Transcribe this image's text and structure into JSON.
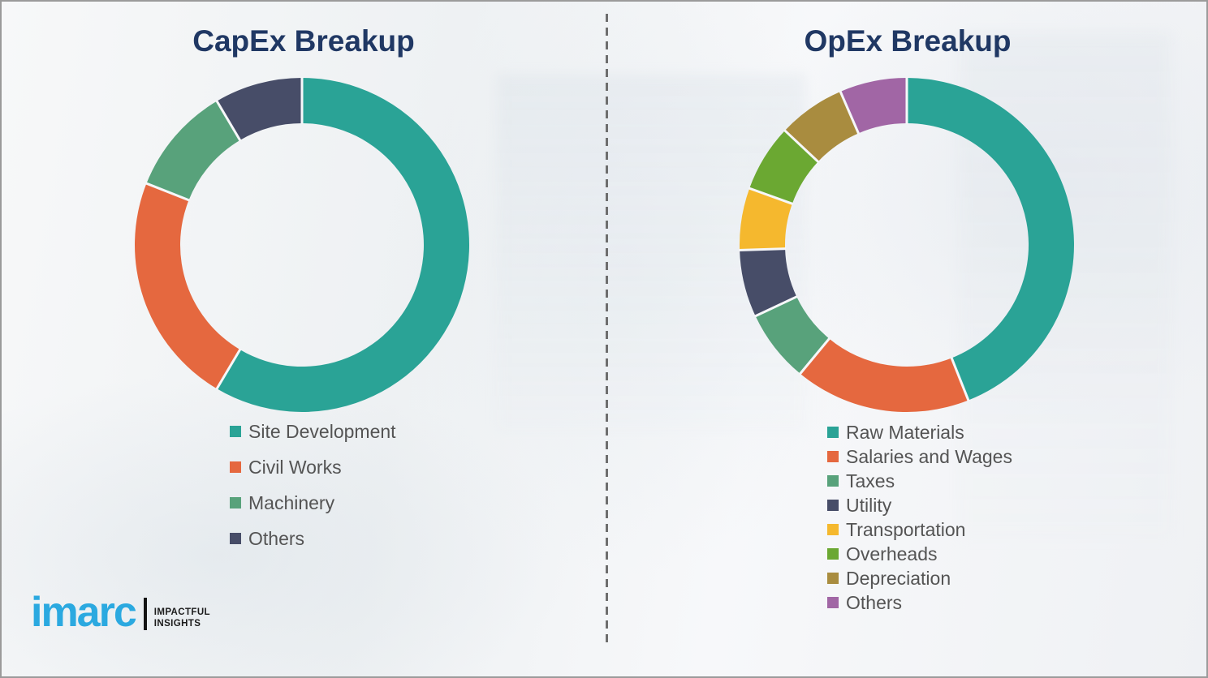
{
  "palette": {
    "title_color": "#203864",
    "legend_text_color": "#545454",
    "divider_color": "#6E6E6E",
    "brand_blue": "#2BA9E0"
  },
  "logo": {
    "brand": "imarc",
    "tagline_line1": "IMPACTFUL",
    "tagline_line2": "INSIGHTS"
  },
  "chart_data": [
    {
      "type": "pie",
      "subtype": "donut",
      "title": "CapEx Breakup",
      "legend_position": "bottom-left",
      "start_angle_deg": 0,
      "direction": "clockwise",
      "categories": [
        "Site Development",
        "Civil Works",
        "Machinery",
        "Others"
      ],
      "values": [
        58.5,
        22.5,
        10.5,
        8.5
      ],
      "unit": "percent",
      "colors": [
        "#2AA396",
        "#E5683F",
        "#58A27B",
        "#474D68"
      ]
    },
    {
      "type": "pie",
      "subtype": "donut",
      "title": "OpEx Breakup",
      "legend_position": "bottom-left",
      "start_angle_deg": 0,
      "direction": "clockwise",
      "categories": [
        "Raw Materials",
        "Salaries and Wages",
        "Taxes",
        "Utility",
        "Transportation",
        "Overheads",
        "Depreciation",
        "Others"
      ],
      "values": [
        44,
        17,
        7,
        6.5,
        6,
        6.5,
        6.5,
        6.5
      ],
      "unit": "percent",
      "colors": [
        "#2AA396",
        "#E5683F",
        "#58A27B",
        "#474D68",
        "#F5B82E",
        "#6BA832",
        "#A98C3F",
        "#A166A5"
      ]
    }
  ]
}
